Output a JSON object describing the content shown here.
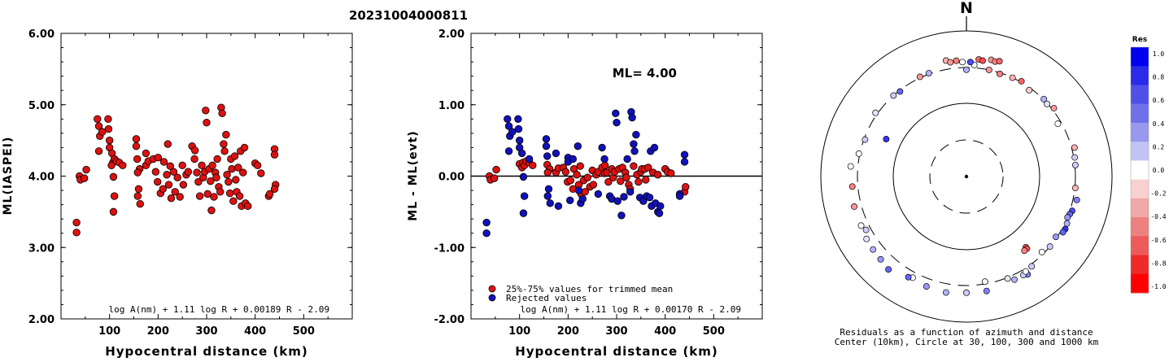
{
  "title": "20231004000811",
  "chart_data": [
    {
      "type": "scatter",
      "ylabel": "ML(IASPEI)",
      "xlabel": "Hypocentral distance (km)",
      "xlim": [
        0,
        600
      ],
      "ylim": [
        2.0,
        6.0
      ],
      "xticks": [
        "100",
        "200",
        "300",
        "400",
        "500"
      ],
      "yticks": [
        "2.00",
        "3.00",
        "4.00",
        "5.00",
        "6.00"
      ],
      "formula": "log A(nm) + 1.11 log R + 0.00189 R - 2.09",
      "point_color": "#dd1111",
      "points": [
        [
          32,
          3.35
        ],
        [
          32,
          3.21
        ],
        [
          38,
          4.0
        ],
        [
          40,
          3.95
        ],
        [
          48,
          3.97
        ],
        [
          52,
          4.09
        ],
        [
          75,
          4.8
        ],
        [
          78,
          4.7
        ],
        [
          80,
          4.56
        ],
        [
          78,
          4.35
        ],
        [
          85,
          4.62
        ],
        [
          97,
          4.8
        ],
        [
          98,
          4.66
        ],
        [
          100,
          4.5
        ],
        [
          100,
          4.4
        ],
        [
          105,
          4.32
        ],
        [
          107,
          4.19
        ],
        [
          104,
          4.15
        ],
        [
          110,
          4.24
        ],
        [
          108,
          3.99
        ],
        [
          110,
          3.72
        ],
        [
          108,
          3.5
        ],
        [
          114,
          4.21
        ],
        [
          120,
          4.19
        ],
        [
          127,
          4.15
        ],
        [
          155,
          4.52
        ],
        [
          155,
          4.42
        ],
        [
          157,
          4.24
        ],
        [
          162,
          4.1
        ],
        [
          158,
          4.05
        ],
        [
          160,
          3.82
        ],
        [
          158,
          3.72
        ],
        [
          163,
          3.61
        ],
        [
          175,
          4.32
        ],
        [
          175,
          4.15
        ],
        [
          180,
          4.21
        ],
        [
          190,
          4.24
        ],
        [
          195,
          4.06
        ],
        [
          200,
          4.26
        ],
        [
          199,
          3.92
        ],
        [
          205,
          3.76
        ],
        [
          210,
          3.82
        ],
        [
          212,
          4.2
        ],
        [
          218,
          4.02
        ],
        [
          220,
          4.45
        ],
        [
          222,
          3.88
        ],
        [
          225,
          4.14
        ],
        [
          227,
          3.69
        ],
        [
          232,
          4.06
        ],
        [
          235,
          3.78
        ],
        [
          240,
          3.98
        ],
        [
          245,
          3.71
        ],
        [
          250,
          4.15
        ],
        [
          252,
          3.88
        ],
        [
          258,
          4.02
        ],
        [
          262,
          4.06
        ],
        [
          270,
          4.42
        ],
        [
          275,
          4.24
        ],
        [
          276,
          4.36
        ],
        [
          280,
          4.05
        ],
        [
          283,
          3.92
        ],
        [
          286,
          3.72
        ],
        [
          290,
          4.15
        ],
        [
          293,
          3.98
        ],
        [
          296,
          4.06
        ],
        [
          298,
          4.92
        ],
        [
          300,
          4.75
        ],
        [
          302,
          3.75
        ],
        [
          305,
          4.1
        ],
        [
          308,
          3.93
        ],
        [
          310,
          3.52
        ],
        [
          312,
          4.15
        ],
        [
          315,
          3.71
        ],
        [
          318,
          4.05
        ],
        [
          320,
          3.98
        ],
        [
          322,
          4.24
        ],
        [
          325,
          3.85
        ],
        [
          328,
          3.78
        ],
        [
          330,
          4.96
        ],
        [
          332,
          4.88
        ],
        [
          335,
          4.45
        ],
        [
          337,
          4.35
        ],
        [
          340,
          4.58
        ],
        [
          342,
          4.02
        ],
        [
          345,
          3.92
        ],
        [
          348,
          3.76
        ],
        [
          350,
          4.24
        ],
        [
          352,
          4.1
        ],
        [
          355,
          3.65
        ],
        [
          358,
          4.28
        ],
        [
          360,
          3.95
        ],
        [
          362,
          3.78
        ],
        [
          365,
          4.12
        ],
        [
          368,
          3.72
        ],
        [
          370,
          4.35
        ],
        [
          372,
          3.58
        ],
        [
          375,
          4.05
        ],
        [
          378,
          4.4
        ],
        [
          380,
          3.62
        ],
        [
          385,
          3.58
        ],
        [
          400,
          4.18
        ],
        [
          405,
          4.15
        ],
        [
          412,
          4.04
        ],
        [
          428,
          3.72
        ],
        [
          430,
          3.75
        ],
        [
          440,
          4.38
        ],
        [
          440,
          4.3
        ],
        [
          442,
          3.88
        ],
        [
          440,
          3.82
        ]
      ]
    },
    {
      "type": "scatter",
      "ylabel": "ML - ML(evt)",
      "xlabel": "Hypocentral distance (km)",
      "xlim": [
        0,
        600
      ],
      "ylim": [
        -2.0,
        2.0
      ],
      "xticks": [
        "100",
        "200",
        "300",
        "400",
        "500"
      ],
      "yticks": [
        "-2.00",
        "-1.00",
        "0.00",
        "1.00",
        "2.00"
      ],
      "annotation": "ML= 4.00",
      "legend": [
        "25%-75% values for trimmed mean",
        "Rejected values"
      ],
      "formula": "log A(nm) + 1.11 log R + 0.00170 R - 2.09",
      "colors": {
        "trimmed": "#dd1111",
        "rejected": "#1111bb"
      },
      "points_trimmed": [
        [
          38,
          0.0
        ],
        [
          40,
          -0.05
        ],
        [
          48,
          -0.03
        ],
        [
          52,
          0.09
        ],
        [
          100,
          0.17
        ],
        [
          105,
          0.12
        ],
        [
          107,
          0.19
        ],
        [
          110,
          0.15
        ],
        [
          114,
          0.21
        ],
        [
          120,
          0.19
        ],
        [
          127,
          0.15
        ],
        [
          157,
          0.16
        ],
        [
          162,
          0.1
        ],
        [
          158,
          0.05
        ],
        [
          175,
          0.05
        ],
        [
          180,
          0.11
        ],
        [
          190,
          0.12
        ],
        [
          195,
          0.06
        ],
        [
          199,
          -0.08
        ],
        [
          205,
          -0.06
        ],
        [
          210,
          -0.18
        ],
        [
          212,
          0.1
        ],
        [
          218,
          0.02
        ],
        [
          222,
          -0.12
        ],
        [
          225,
          0.14
        ],
        [
          227,
          -0.25
        ],
        [
          232,
          -0.06
        ],
        [
          235,
          -0.22
        ],
        [
          240,
          -0.02
        ],
        [
          245,
          -0.15
        ],
        [
          250,
          0.08
        ],
        [
          252,
          -0.12
        ],
        [
          258,
          0.02
        ],
        [
          262,
          0.06
        ],
        [
          270,
          0.12
        ],
        [
          275,
          0.04
        ],
        [
          276,
          0.15
        ],
        [
          280,
          0.05
        ],
        [
          283,
          -0.08
        ],
        [
          290,
          0.1
        ],
        [
          293,
          -0.02
        ],
        [
          296,
          0.06
        ],
        [
          305,
          0.1
        ],
        [
          308,
          -0.07
        ],
        [
          312,
          0.12
        ],
        [
          318,
          0.05
        ],
        [
          320,
          -0.02
        ],
        [
          325,
          -0.12
        ],
        [
          328,
          -0.18
        ],
        [
          335,
          0.14
        ],
        [
          342,
          0.02
        ],
        [
          345,
          -0.08
        ],
        [
          350,
          0.06
        ],
        [
          352,
          0.1
        ],
        [
          358,
          0.1
        ],
        [
          360,
          -0.05
        ],
        [
          365,
          0.12
        ],
        [
          375,
          0.05
        ],
        [
          385,
          0.02
        ],
        [
          400,
          0.1
        ],
        [
          405,
          0.06
        ],
        [
          412,
          0.04
        ],
        [
          440,
          -0.22
        ],
        [
          442,
          -0.15
        ]
      ],
      "points_rejected": [
        [
          32,
          -0.65
        ],
        [
          32,
          -0.8
        ],
        [
          75,
          0.8
        ],
        [
          78,
          0.7
        ],
        [
          80,
          0.56
        ],
        [
          78,
          0.35
        ],
        [
          85,
          0.62
        ],
        [
          97,
          0.8
        ],
        [
          98,
          0.66
        ],
        [
          100,
          0.5
        ],
        [
          100,
          0.4
        ],
        [
          105,
          0.32
        ],
        [
          108,
          -0.01
        ],
        [
          110,
          -0.28
        ],
        [
          108,
          -0.52
        ],
        [
          120,
          0.24
        ],
        [
          155,
          0.52
        ],
        [
          155,
          0.42
        ],
        [
          157,
          0.28
        ],
        [
          158,
          -0.28
        ],
        [
          160,
          -0.18
        ],
        [
          163,
          -0.38
        ],
        [
          175,
          0.32
        ],
        [
          180,
          -0.42
        ],
        [
          200,
          0.26
        ],
        [
          200,
          0.2
        ],
        [
          204,
          -0.34
        ],
        [
          210,
          0.24
        ],
        [
          220,
          0.42
        ],
        [
          222,
          -0.2
        ],
        [
          226,
          -0.38
        ],
        [
          230,
          -0.32
        ],
        [
          262,
          -0.25
        ],
        [
          270,
          0.4
        ],
        [
          275,
          0.24
        ],
        [
          286,
          -0.28
        ],
        [
          290,
          -0.32
        ],
        [
          298,
          0.88
        ],
        [
          300,
          0.75
        ],
        [
          302,
          -0.35
        ],
        [
          310,
          -0.55
        ],
        [
          315,
          -0.29
        ],
        [
          322,
          0.24
        ],
        [
          328,
          -0.22
        ],
        [
          330,
          0.9
        ],
        [
          332,
          0.82
        ],
        [
          335,
          0.45
        ],
        [
          337,
          0.35
        ],
        [
          340,
          0.58
        ],
        [
          348,
          -0.3
        ],
        [
          355,
          -0.35
        ],
        [
          362,
          -0.28
        ],
        [
          368,
          -0.3
        ],
        [
          370,
          0.35
        ],
        [
          372,
          -0.42
        ],
        [
          378,
          0.4
        ],
        [
          380,
          -0.38
        ],
        [
          385,
          -0.5
        ],
        [
          388,
          -0.52
        ],
        [
          390,
          -0.42
        ],
        [
          430,
          -0.25
        ],
        [
          430,
          -0.28
        ],
        [
          440,
          0.3
        ],
        [
          440,
          0.2
        ]
      ]
    },
    {
      "type": "scatter",
      "subtype": "polar",
      "north_label": "N",
      "caption_line1": "Residuals as a function of azimuth and distance",
      "caption_line2": "Center (10km), Circle at 30, 100, 300 and 1000 km",
      "colorbar_title": "Res",
      "colorbar_ticks": [
        "1.0",
        "0.8",
        "0.6",
        "0.4",
        "0.2",
        "0.0",
        "-0.2",
        "-0.4",
        "-0.6",
        "-0.8",
        "-1.0"
      ],
      "colorbar_colors": [
        "#0000ee",
        "#2a2ae8",
        "#5050e8",
        "#7070ea",
        "#9898ee",
        "#c2c2f4",
        "#ffffff",
        "#f8d0d0",
        "#f0a8a8",
        "#ee8080",
        "#ee5a5a",
        "#ee2a2a",
        "#ff0000"
      ],
      "stations": [
        [
          12,
          300,
          -0.4
        ],
        [
          18,
          290,
          -0.5
        ],
        [
          25,
          300,
          -0.3
        ],
        [
          30,
          310,
          -0.6
        ],
        [
          36,
          280,
          -0.2
        ],
        [
          45,
          305,
          0.3
        ],
        [
          48,
          295,
          0.1
        ],
        [
          52,
          320,
          -0.4
        ],
        [
          60,
          270,
          0.0
        ],
        [
          75,
          330,
          -0.3
        ],
        [
          80,
          310,
          0.2
        ],
        [
          96,
          305,
          -0.3
        ],
        [
          102,
          340,
          0.5
        ],
        [
          108,
          322,
          0.7
        ],
        [
          110,
          310,
          0.6
        ],
        [
          112,
          300,
          0.4
        ],
        [
          115,
          320,
          0.3
        ],
        [
          118,
          330,
          0.8
        ],
        [
          120,
          325,
          0.6
        ],
        [
          124,
          290,
          0.4
        ],
        [
          130,
          300,
          0.2
        ],
        [
          135,
          280,
          0.0
        ],
        [
          140,
          180,
          -0.6
        ],
        [
          140,
          190,
          -0.7
        ],
        [
          142,
          190,
          -0.5
        ],
        [
          148,
          370,
          0.5
        ],
        [
          150,
          350,
          0.2
        ],
        [
          155,
          350,
          0.3
        ],
        [
          158,
          310,
          0.1
        ],
        [
          170,
          280,
          0.0
        ],
        [
          170,
          380,
          0.5
        ],
        [
          180,
          380,
          0.2
        ],
        [
          190,
          400,
          0.3
        ],
        [
          200,
          390,
          0.4
        ],
        [
          208,
          360,
          0.0
        ],
        [
          210,
          380,
          0.6
        ],
        [
          220,
          450,
          0.6
        ],
        [
          226,
          420,
          0.4
        ],
        [
          232,
          410,
          0.3
        ],
        [
          238,
          400,
          0.1
        ],
        [
          242,
          350,
          0.2
        ],
        [
          245,
          380,
          0.0
        ],
        [
          255,
          380,
          -0.4
        ],
        [
          265,
          360,
          -0.5
        ],
        [
          275,
          380,
          0.0
        ],
        [
          282,
          310,
          0.0
        ],
        [
          290,
          290,
          0.2
        ],
        [
          295,
          160,
          0.8
        ],
        [
          305,
          320,
          0.1
        ],
        [
          318,
          300,
          0.2
        ],
        [
          322,
          290,
          0.6
        ],
        [
          335,
          310,
          -0.4
        ],
        [
          340,
          310,
          0.3
        ],
        [
          350,
          400,
          -0.3
        ],
        [
          352,
          370,
          -0.4
        ],
        [
          355,
          380,
          -0.5
        ],
        [
          358,
          360,
          0.0
        ],
        [
          6,
          400,
          -0.6
        ],
        [
          8,
          390,
          -0.7
        ],
        [
          12,
          420,
          -0.4
        ],
        [
          14,
          410,
          -0.5
        ],
        [
          16,
          430,
          -0.6
        ],
        [
          4,
          330,
          0.0
        ],
        [
          2,
          360,
          0.7
        ],
        [
          0,
          280,
          0.3
        ],
        [
          84,
          305,
          0.2
        ],
        [
          148,
          330,
          0.0
        ],
        [
          144,
          320,
          0.2
        ]
      ]
    }
  ]
}
